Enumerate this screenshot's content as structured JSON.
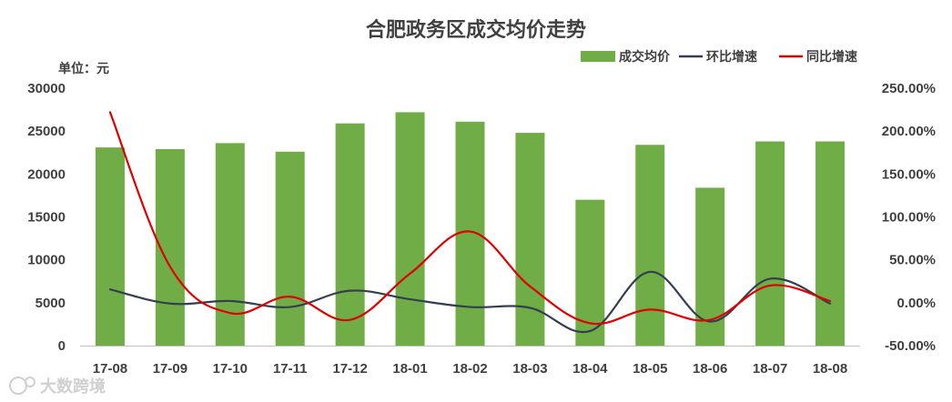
{
  "chart_data": {
    "type": "bar+line",
    "title": "合肥政务区成交均价走势",
    "unit_label": "单位：元",
    "categories": [
      "17-08",
      "17-09",
      "17-10",
      "17-11",
      "17-12",
      "18-01",
      "18-02",
      "18-03",
      "18-04",
      "18-05",
      "18-06",
      "18-07",
      "18-08"
    ],
    "y_left": {
      "min": 0,
      "max": 30000,
      "ticks": [
        "0",
        "5000",
        "10000",
        "15000",
        "20000",
        "25000",
        "30000"
      ]
    },
    "y_right": {
      "min": -50,
      "max": 250,
      "ticks": [
        "-50.00%",
        "0.00%",
        "50.00%",
        "100.00%",
        "150.00%",
        "200.00%",
        "250.00%"
      ]
    },
    "bar_series": {
      "name": "成交均价",
      "color": "#70ad47",
      "values": [
        23100,
        22900,
        23600,
        22600,
        25900,
        27200,
        26100,
        24800,
        17000,
        23400,
        18400,
        23800,
        23800
      ]
    },
    "line_series": [
      {
        "name": "环比增速",
        "color": "#333f50",
        "values": [
          15.5,
          -1,
          2,
          -5,
          14,
          4,
          -5,
          -6,
          -33,
          36,
          -22,
          28,
          -1
        ]
      },
      {
        "name": "同比增速",
        "color": "#e00000",
        "values": [
          222,
          42,
          -12,
          7,
          -20,
          34,
          83,
          19,
          -24,
          -8,
          -20,
          20,
          2
        ]
      }
    ],
    "legend": {
      "position": "top-right"
    },
    "grid": false,
    "watermark": "大数跨境"
  }
}
